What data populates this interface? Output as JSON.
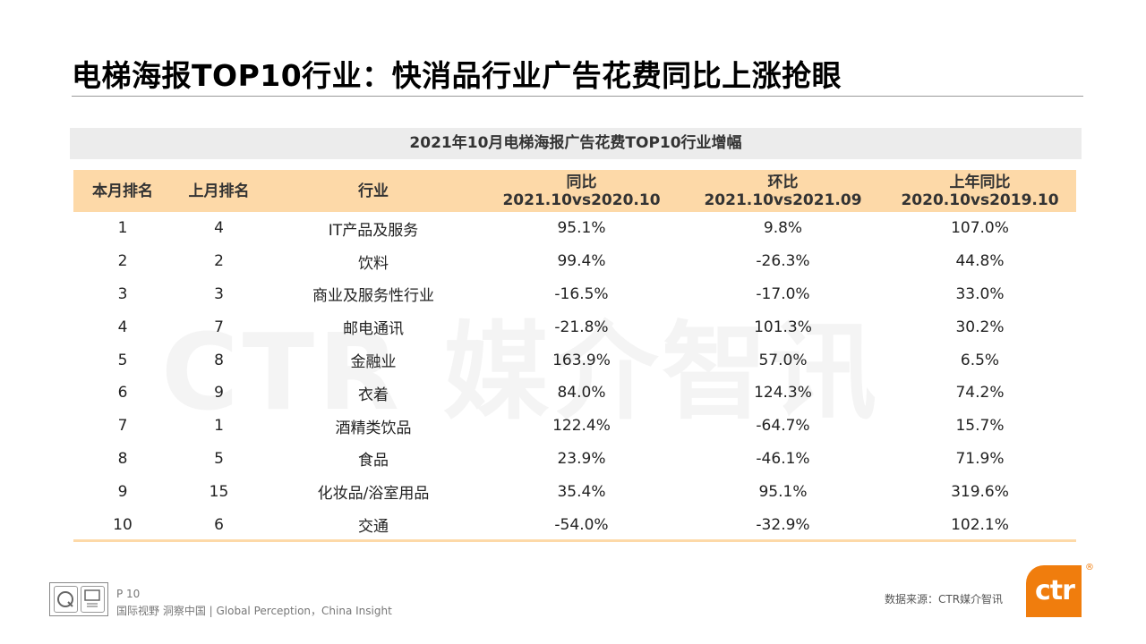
{
  "slide": {
    "title": "电梯海报TOP10行业：快消品行业广告花费同比上涨抢眼",
    "watermark": "CTR 媒介智讯"
  },
  "table": {
    "caption": "2021年10月电梯海报广告花费TOP10行业增幅",
    "headers": [
      {
        "line1": "本月排名",
        "line2": ""
      },
      {
        "line1": "上月排名",
        "line2": ""
      },
      {
        "line1": "行业",
        "line2": ""
      },
      {
        "line1": "同比",
        "line2": "2021.10vs2020.10"
      },
      {
        "line1": "环比",
        "line2": "2021.10vs2021.09"
      },
      {
        "line1": "上年同比",
        "line2": "2020.10vs2019.10"
      }
    ],
    "rows": [
      [
        "1",
        "4",
        "IT产品及服务",
        "95.1%",
        "9.8%",
        "107.0%"
      ],
      [
        "2",
        "2",
        "饮料",
        "99.4%",
        "-26.3%",
        "44.8%"
      ],
      [
        "3",
        "3",
        "商业及服务性行业",
        "-16.5%",
        "-17.0%",
        "33.0%"
      ],
      [
        "4",
        "7",
        "邮电通讯",
        "-21.8%",
        "101.3%",
        "30.2%"
      ],
      [
        "5",
        "8",
        "金融业",
        "163.9%",
        "57.0%",
        "6.5%"
      ],
      [
        "6",
        "9",
        "衣着",
        "84.0%",
        "124.3%",
        "74.2%"
      ],
      [
        "7",
        "1",
        "酒精类饮品",
        "122.4%",
        "-64.7%",
        "15.7%"
      ],
      [
        "8",
        "5",
        "食品",
        "23.9%",
        "-46.1%",
        "71.9%"
      ],
      [
        "9",
        "15",
        "化妆品/浴室用品",
        "35.4%",
        "95.1%",
        "319.6%"
      ],
      [
        "10",
        "6",
        "交通",
        "-54.0%",
        "-32.9%",
        "102.1%"
      ]
    ]
  },
  "footer": {
    "page": "P 10",
    "slogan": "国际视野  洞察中国 | Global Perception，China Insight",
    "source": "数据来源：CTR媒介智讯",
    "brand": "ctr",
    "registered": "®",
    "cert_left_icon": "q-certification-icon",
    "cert_right_icon": "sgs-certification-icon",
    "accent_color": "#f07d0d",
    "header_fill_color": "#fdd9a8"
  }
}
